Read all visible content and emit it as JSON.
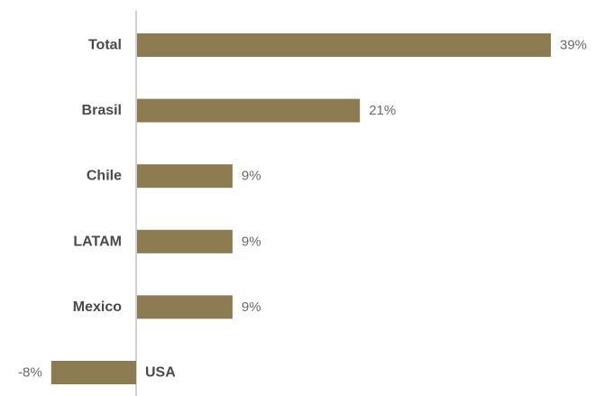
{
  "chart_data": {
    "type": "bar",
    "orientation": "horizontal",
    "categories": [
      "Total",
      "Brasil",
      "Chile",
      "LATAM",
      "Mexico",
      "USA"
    ],
    "values": [
      39,
      21,
      9,
      9,
      9,
      -8
    ],
    "value_labels": [
      "39%",
      "21%",
      "9%",
      "9%",
      "9%",
      "-8%"
    ],
    "title": "",
    "xlabel": "",
    "ylabel": "",
    "xlim": [
      -8.5,
      39
    ],
    "grid": false,
    "legend": "none",
    "bar_color": "#8c7a50",
    "axis_color": "#d0d0d0"
  }
}
